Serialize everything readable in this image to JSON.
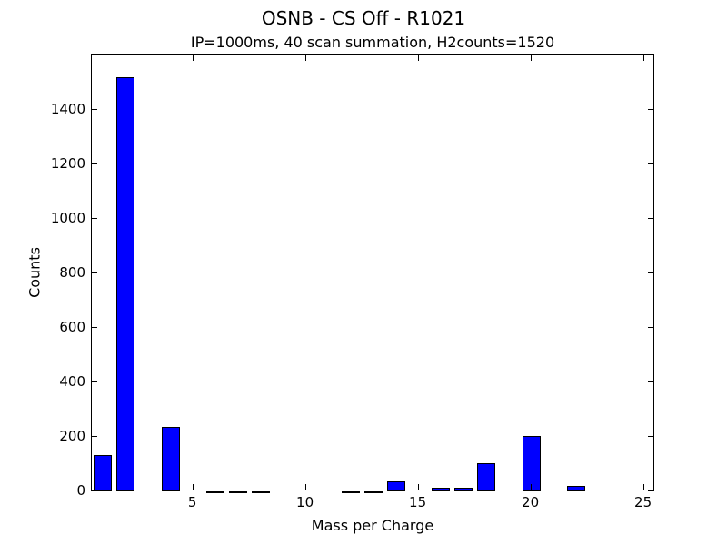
{
  "chart_data": {
    "type": "bar",
    "title": "OSNB - CS Off - R1021",
    "subtitle": "IP=1000ms, 40 scan summation, H2counts=1520",
    "xlabel": "Mass per Charge",
    "ylabel": "Counts",
    "x": [
      1,
      2,
      3,
      4,
      5,
      6,
      7,
      8,
      9,
      10,
      11,
      12,
      13,
      14,
      15,
      16,
      17,
      18,
      19,
      20,
      21,
      22,
      23,
      24,
      25
    ],
    "values": [
      133,
      1520,
      0,
      236,
      0,
      1,
      1,
      1,
      0,
      0,
      0,
      1,
      1,
      37,
      0,
      15,
      15,
      105,
      0,
      202,
      0,
      20,
      0,
      0,
      0
    ],
    "bar_color": "#0000ff",
    "bar_width": 0.8,
    "xlim": [
      0.5,
      25.5
    ],
    "ylim": [
      0,
      1600
    ],
    "xticks": [
      5,
      10,
      15,
      20,
      25
    ],
    "yticks": [
      0,
      200,
      400,
      600,
      800,
      1000,
      1200,
      1400
    ],
    "grid": false,
    "legend": null
  }
}
